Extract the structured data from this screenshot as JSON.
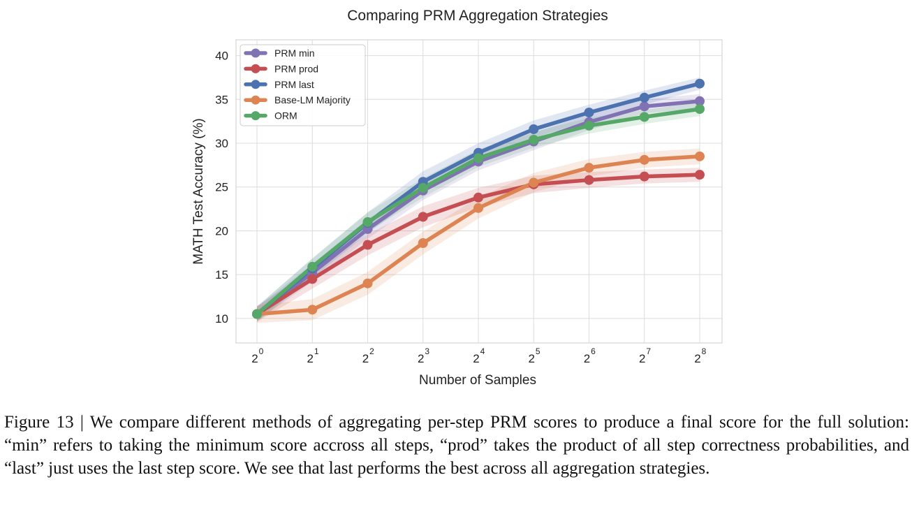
{
  "chart_data": {
    "type": "line",
    "title": "Comparing PRM Aggregation Strategies",
    "xlabel": "Number of Samples",
    "ylabel": "MATH Test Accuracy (%)",
    "x_base": "2",
    "x_exponents": [
      "0",
      "1",
      "2",
      "3",
      "4",
      "5",
      "6",
      "7",
      "8"
    ],
    "x_scale": "log2",
    "x": [
      1,
      2,
      4,
      8,
      16,
      32,
      64,
      128,
      256
    ],
    "ylim": [
      7.2,
      41.8
    ],
    "yticks": [
      10,
      15,
      20,
      25,
      30,
      35,
      40
    ],
    "grid": true,
    "legend_position": "top-left",
    "series": [
      {
        "name": "PRM min",
        "color": "#8172b3",
        "values": [
          10.5,
          15.2,
          20.2,
          24.6,
          27.9,
          30.2,
          32.4,
          34.2,
          34.8
        ],
        "band": [
          0.8,
          1.0,
          1.1,
          1.1,
          1.0,
          1.0,
          0.9,
          0.8,
          0.8
        ]
      },
      {
        "name": "PRM prod",
        "color": "#c44e52",
        "values": [
          10.5,
          14.5,
          18.4,
          21.6,
          23.8,
          25.3,
          25.8,
          26.2,
          26.4
        ],
        "band": [
          0.9,
          1.1,
          1.2,
          1.2,
          1.1,
          1.0,
          0.9,
          0.8,
          0.8
        ]
      },
      {
        "name": "PRM last",
        "color": "#4c72b0",
        "values": [
          10.5,
          15.7,
          20.9,
          25.6,
          28.9,
          31.6,
          33.5,
          35.2,
          36.8
        ],
        "band": [
          0.9,
          1.1,
          1.2,
          1.2,
          1.1,
          1.0,
          0.9,
          0.8,
          0.7
        ]
      },
      {
        "name": "Base-LM Majority",
        "color": "#dd8452",
        "values": [
          10.5,
          11.0,
          14.0,
          18.6,
          22.6,
          25.5,
          27.2,
          28.1,
          28.5
        ],
        "band": [
          1.0,
          1.2,
          1.3,
          1.3,
          1.2,
          1.1,
          1.0,
          0.9,
          0.9
        ]
      },
      {
        "name": "ORM",
        "color": "#55a868",
        "values": [
          10.5,
          15.9,
          21.0,
          24.9,
          28.3,
          30.4,
          32.0,
          33.0,
          33.9
        ],
        "band": [
          0.8,
          1.0,
          1.1,
          1.1,
          1.0,
          0.9,
          0.9,
          0.8,
          0.8
        ]
      }
    ]
  },
  "caption": {
    "text": "Figure 13 | We compare different methods of aggregating per-step PRM scores to produce a final score for the full solution: “min” refers to taking the minimum score accross all steps, “prod” takes the product of all step correctness probabilities, and “last” just uses the last step score. We see that last performs the best across all aggregation strategies."
  }
}
